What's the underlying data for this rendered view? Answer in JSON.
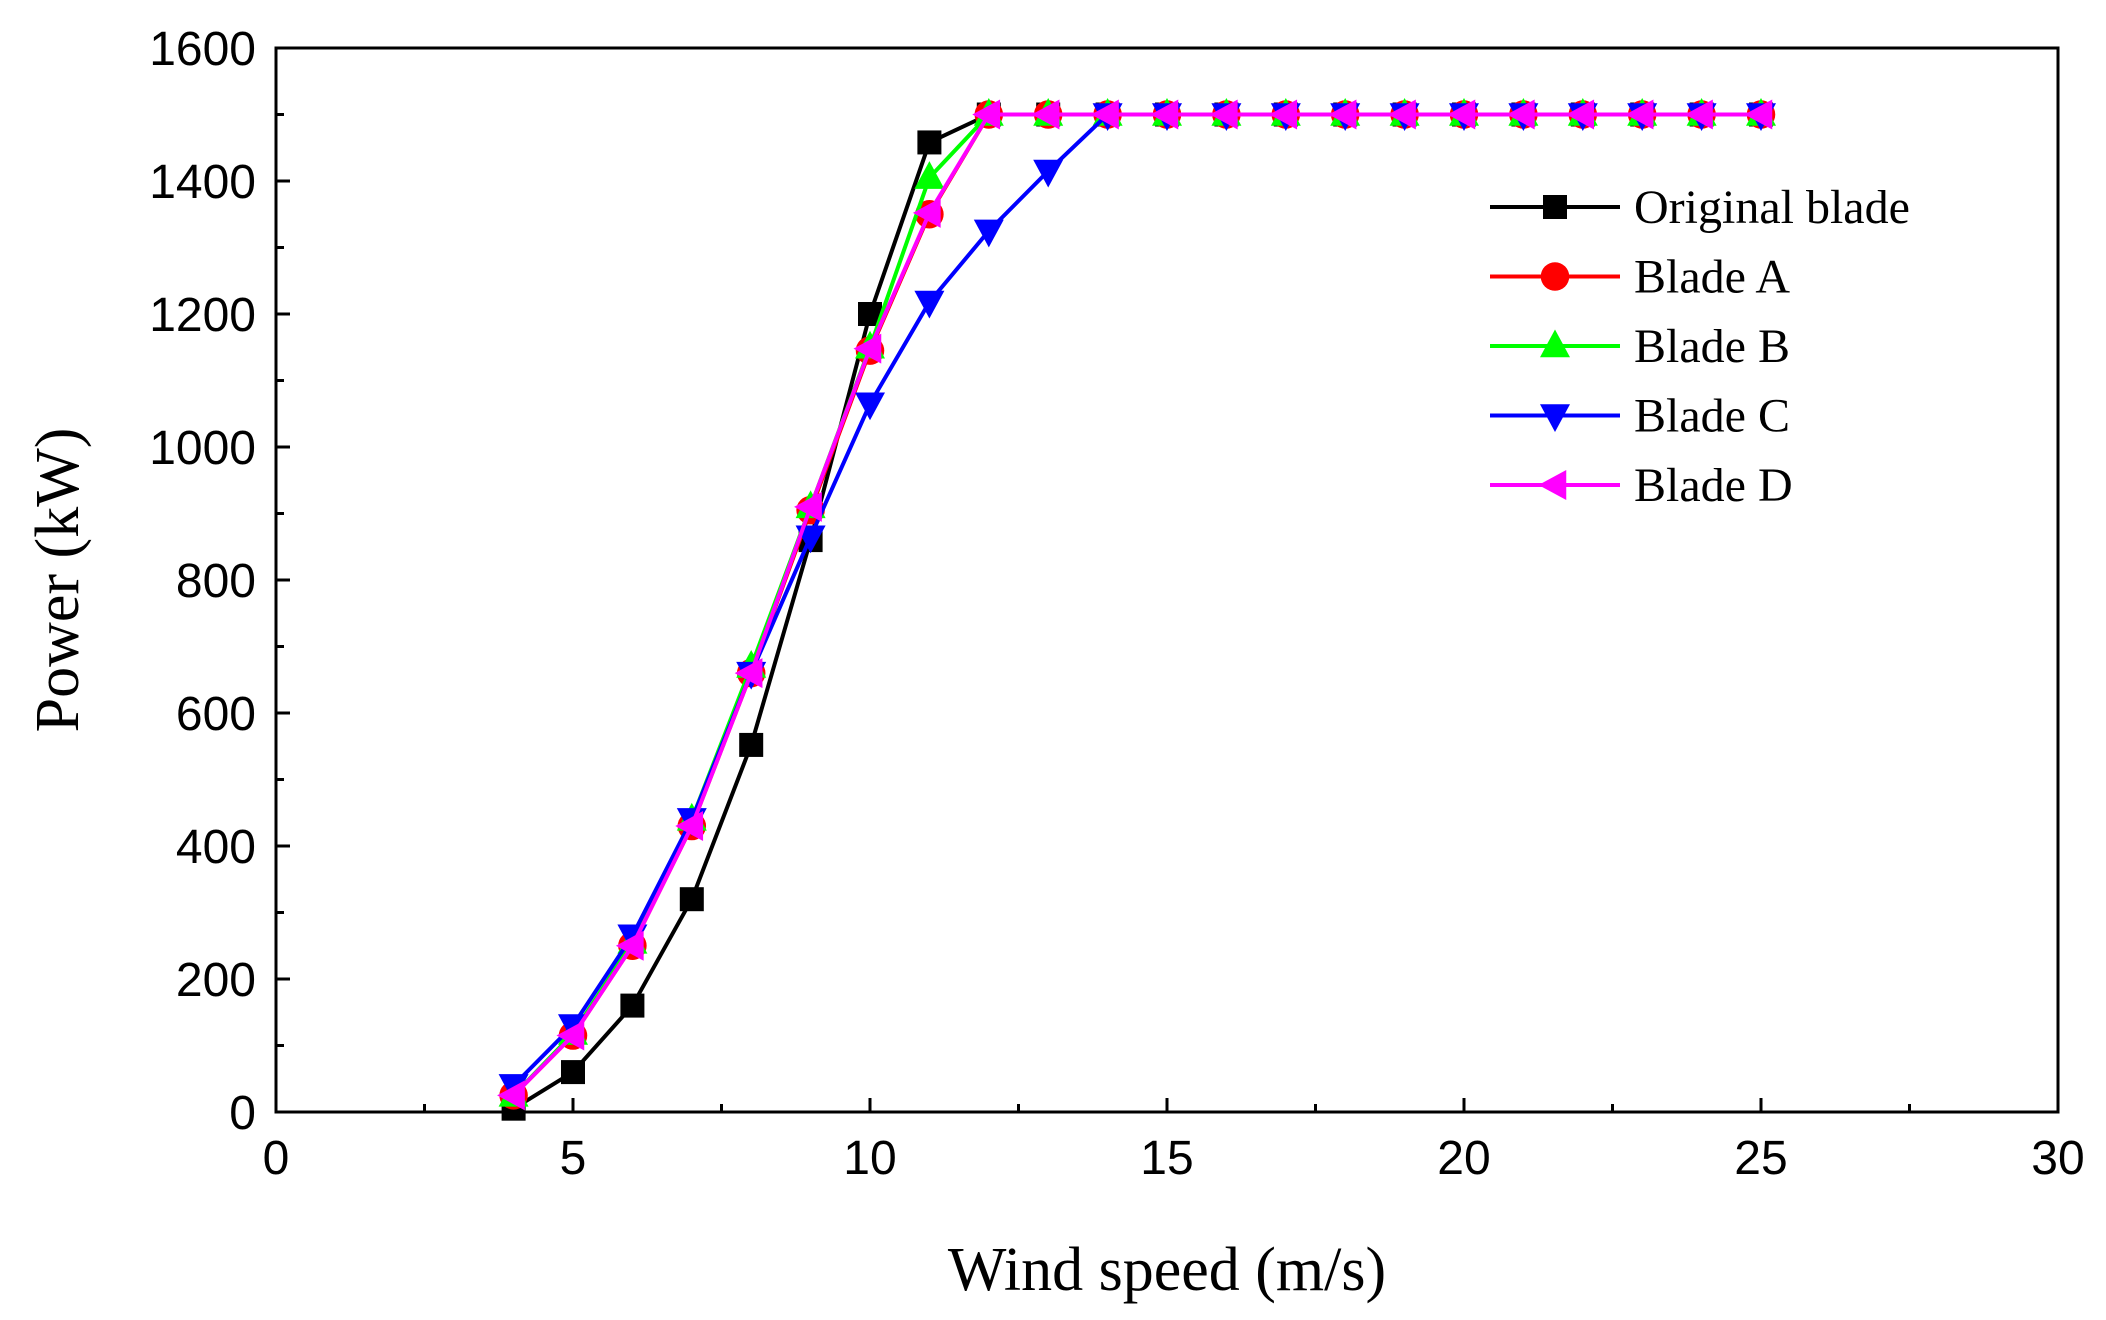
{
  "chart_data": {
    "type": "line",
    "title": "",
    "xlabel": "Wind speed (m/s)",
    "ylabel": "Power (kW)",
    "xlim": [
      0,
      30
    ],
    "ylim": [
      0,
      1600
    ],
    "xticks": [
      0,
      5,
      10,
      15,
      20,
      25,
      30
    ],
    "yticks": [
      0,
      200,
      400,
      600,
      800,
      1000,
      1200,
      1400,
      1600
    ],
    "grid": false,
    "legend_position": "top-right",
    "x": [
      4,
      5,
      6,
      7,
      8,
      9,
      10,
      11,
      12,
      13,
      14,
      15,
      16,
      17,
      18,
      19,
      20,
      21,
      22,
      23,
      24,
      25
    ],
    "series": [
      {
        "name": "Original blade",
        "color": "#000000",
        "marker": "square",
        "values": [
          5,
          60,
          160,
          320,
          552,
          860,
          1200,
          1458,
          1500,
          1500,
          1500,
          1500,
          1500,
          1500,
          1500,
          1500,
          1500,
          1500,
          1500,
          1500,
          1500,
          1500
        ]
      },
      {
        "name": "Blade A",
        "color": "#ff0000",
        "marker": "circle",
        "values": [
          25,
          115,
          250,
          430,
          660,
          905,
          1145,
          1350,
          1500,
          1500,
          1500,
          1500,
          1500,
          1500,
          1500,
          1500,
          1500,
          1500,
          1500,
          1500,
          1500,
          1500
        ]
      },
      {
        "name": "Blade B",
        "color": "#00ff00",
        "marker": "triangle-up",
        "values": [
          25,
          118,
          255,
          440,
          670,
          910,
          1150,
          1405,
          1500,
          1500,
          1500,
          1500,
          1500,
          1500,
          1500,
          1500,
          1500,
          1500,
          1500,
          1500,
          1500,
          1500
        ]
      },
      {
        "name": "Blade C",
        "color": "#0000ff",
        "marker": "triangle-down",
        "values": [
          40,
          130,
          265,
          440,
          660,
          865,
          1065,
          1218,
          1325,
          1415,
          1500,
          1500,
          1500,
          1500,
          1500,
          1500,
          1500,
          1500,
          1500,
          1500,
          1500,
          1500
        ]
      },
      {
        "name": "Blade D",
        "color": "#ff00ff",
        "marker": "triangle-left",
        "values": [
          25,
          115,
          250,
          430,
          660,
          910,
          1148,
          1352,
          1500,
          1500,
          1500,
          1500,
          1500,
          1500,
          1500,
          1500,
          1500,
          1500,
          1500,
          1500,
          1500,
          1500
        ]
      }
    ]
  }
}
